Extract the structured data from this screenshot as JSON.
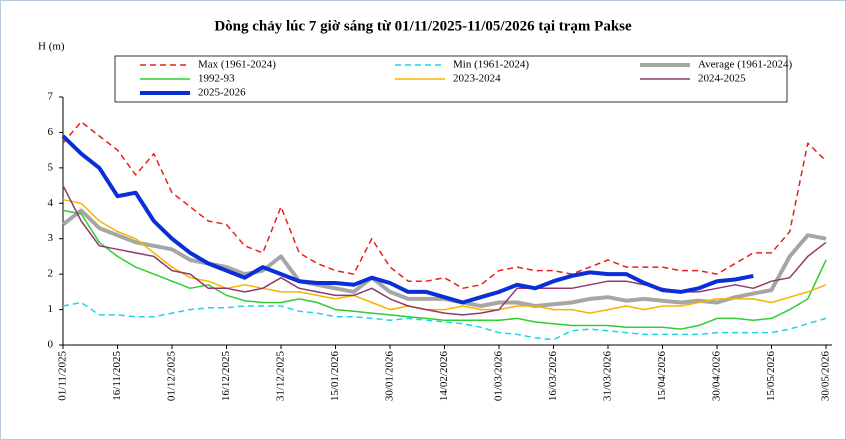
{
  "chart_data": {
    "type": "line",
    "title": "Dòng chảy lúc 7 giờ sáng từ 01/11/2025-11/05/2026 tại trạm Pakse",
    "y_label": "H (m)",
    "x": [
      "01/11/2025",
      "06/11/2025",
      "11/11/2025",
      "16/11/2025",
      "21/11/2025",
      "26/11/2025",
      "01/12/2025",
      "06/12/2025",
      "11/12/2025",
      "16/12/2025",
      "21/12/2025",
      "26/12/2025",
      "31/12/2025",
      "05/01/2026",
      "10/01/2026",
      "15/01/2026",
      "20/01/2026",
      "25/01/2026",
      "30/01/2026",
      "04/02/2026",
      "09/02/2026",
      "14/02/2026",
      "19/02/2026",
      "24/02/2026",
      "01/03/2026",
      "06/03/2026",
      "11/03/2026",
      "16/03/2026",
      "21/03/2026",
      "26/03/2026",
      "31/03/2026",
      "05/04/2026",
      "10/04/2026",
      "15/04/2026",
      "20/04/2026",
      "25/04/2026",
      "30/04/2026",
      "05/05/2026",
      "10/05/2026",
      "15/05/2026",
      "20/05/2026",
      "25/05/2026",
      "30/05/2026"
    ],
    "xticks": [
      "01/11/2025",
      "16/11/2025",
      "01/12/2025",
      "16/12/2025",
      "31/12/2025",
      "15/01/2026",
      "30/01/2026",
      "14/02/2026",
      "01/03/2026",
      "16/03/2026",
      "31/03/2026",
      "15/04/2026",
      "30/04/2026",
      "15/05/2026",
      "30/05/2026"
    ],
    "ylim": [
      0,
      7
    ],
    "yticks": [
      0,
      1,
      2,
      3,
      4,
      5,
      6,
      7
    ],
    "grid": false,
    "series": [
      {
        "name": "Max (1961-2024)",
        "color": "#e8201a",
        "dash": true,
        "width": 1.5,
        "values": [
          5.7,
          6.3,
          5.9,
          5.5,
          4.8,
          5.4,
          4.3,
          3.9,
          3.5,
          3.4,
          2.8,
          2.6,
          3.9,
          2.6,
          2.3,
          2.1,
          2.0,
          3.0,
          2.2,
          1.8,
          1.8,
          1.9,
          1.6,
          1.7,
          2.1,
          2.2,
          2.1,
          2.1,
          2.0,
          2.2,
          2.4,
          2.2,
          2.2,
          2.2,
          2.1,
          2.1,
          2.0,
          2.3,
          2.6,
          2.6,
          3.2,
          5.7,
          5.2
        ]
      },
      {
        "name": "Min (1961-2024)",
        "color": "#1fd3ea",
        "dash": true,
        "width": 1.5,
        "values": [
          1.1,
          1.2,
          0.85,
          0.85,
          0.8,
          0.8,
          0.9,
          1.0,
          1.05,
          1.05,
          1.1,
          1.1,
          1.1,
          0.95,
          0.9,
          0.8,
          0.8,
          0.75,
          0.7,
          0.75,
          0.7,
          0.65,
          0.6,
          0.5,
          0.35,
          0.3,
          0.2,
          0.15,
          0.4,
          0.45,
          0.4,
          0.35,
          0.3,
          0.3,
          0.3,
          0.3,
          0.35,
          0.35,
          0.35,
          0.35,
          0.45,
          0.6,
          0.75
        ]
      },
      {
        "name": "Average (1961-2024)",
        "color": "#a6a6a6",
        "dash": false,
        "width": 4,
        "values": [
          3.4,
          3.8,
          3.3,
          3.1,
          2.9,
          2.8,
          2.7,
          2.4,
          2.3,
          2.2,
          2.0,
          2.1,
          2.5,
          1.8,
          1.7,
          1.6,
          1.5,
          1.9,
          1.5,
          1.3,
          1.3,
          1.3,
          1.2,
          1.1,
          1.2,
          1.2,
          1.1,
          1.15,
          1.2,
          1.3,
          1.35,
          1.25,
          1.3,
          1.25,
          1.2,
          1.25,
          1.2,
          1.35,
          1.45,
          1.55,
          2.5,
          3.1,
          3.0
        ]
      },
      {
        "name": "1992-93",
        "color": "#33cc33",
        "dash": false,
        "width": 1.5,
        "values": [
          3.8,
          3.7,
          2.9,
          2.5,
          2.2,
          2.0,
          1.8,
          1.6,
          1.7,
          1.4,
          1.25,
          1.2,
          1.2,
          1.3,
          1.2,
          1.0,
          0.95,
          0.9,
          0.85,
          0.8,
          0.75,
          0.7,
          0.7,
          0.7,
          0.7,
          0.75,
          0.65,
          0.6,
          0.55,
          0.55,
          0.55,
          0.5,
          0.5,
          0.5,
          0.45,
          0.55,
          0.75,
          0.75,
          0.7,
          0.75,
          1.0,
          1.3,
          2.4
        ]
      },
      {
        "name": "2023-2024",
        "color": "#f5b400",
        "dash": false,
        "width": 1.5,
        "values": [
          4.1,
          4.0,
          3.5,
          3.2,
          3.0,
          2.6,
          2.2,
          1.9,
          1.8,
          1.6,
          1.7,
          1.6,
          1.5,
          1.5,
          1.4,
          1.3,
          1.4,
          1.2,
          1.0,
          1.1,
          1.0,
          1.0,
          1.1,
          1.0,
          1.0,
          1.1,
          1.1,
          1.0,
          1.0,
          0.9,
          1.0,
          1.1,
          1.0,
          1.1,
          1.1,
          1.2,
          1.3,
          1.3,
          1.3,
          1.2,
          1.35,
          1.5,
          1.7
        ]
      },
      {
        "name": "2024-2025",
        "color": "#8e3b6b",
        "dash": false,
        "width": 1.5,
        "values": [
          4.5,
          3.5,
          2.8,
          2.7,
          2.6,
          2.5,
          2.1,
          2.0,
          1.6,
          1.6,
          1.5,
          1.6,
          1.9,
          1.6,
          1.5,
          1.4,
          1.4,
          1.6,
          1.3,
          1.1,
          1.0,
          0.9,
          0.85,
          0.9,
          1.0,
          1.6,
          1.6,
          1.6,
          1.6,
          1.7,
          1.8,
          1.8,
          1.7,
          1.6,
          1.5,
          1.5,
          1.6,
          1.7,
          1.6,
          1.8,
          1.9,
          2.5,
          2.9
        ]
      },
      {
        "name": "2025-2026",
        "color": "#0a2fd6",
        "dash": false,
        "width": 4,
        "values": [
          5.9,
          5.4,
          5.0,
          4.2,
          4.3,
          3.5,
          3.0,
          2.6,
          2.3,
          2.1,
          1.9,
          2.2,
          2.0,
          1.8,
          1.75,
          1.75,
          1.7,
          1.9,
          1.75,
          1.5,
          1.5,
          1.35,
          1.2,
          1.35,
          1.5,
          1.7,
          1.6,
          1.8,
          1.95,
          2.05,
          2.0,
          2.0,
          1.75,
          1.55,
          1.5,
          1.6,
          1.8,
          1.85,
          1.95,
          null,
          null,
          null,
          null
        ]
      }
    ]
  }
}
